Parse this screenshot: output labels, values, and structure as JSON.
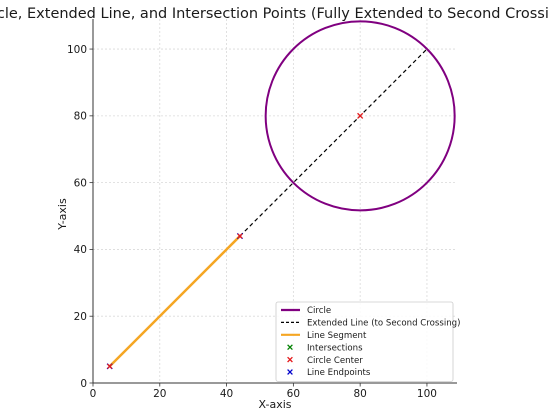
{
  "chart_data": {
    "type": "line",
    "title": "Circle, Extended Line, and Intersection Points (Fully Extended to Second Crossing)",
    "xlabel": "X-axis",
    "ylabel": "Y-axis",
    "xlim": [
      0,
      109
    ],
    "ylim": [
      0,
      109
    ],
    "xticks": [
      0,
      20,
      40,
      60,
      80,
      100
    ],
    "yticks": [
      0,
      20,
      40,
      60,
      80,
      100
    ],
    "grid": true,
    "legend_position": "bottom-right",
    "colors": {
      "circle": "#800080",
      "extended_line": "#000000",
      "segment": "#f5a623",
      "intersections": "#008000",
      "center": "#e41a1c",
      "endpoints": "#0000cc"
    },
    "circle": {
      "center": [
        80,
        80
      ],
      "radius": 28.3
    },
    "extended_line": {
      "x": [
        44,
        100
      ],
      "y": [
        44,
        100
      ]
    },
    "segment": {
      "x": [
        5,
        44
      ],
      "y": [
        5,
        44
      ]
    },
    "intersections": [],
    "center_point": [
      80,
      80
    ],
    "endpoints": [
      [
        5,
        5
      ],
      [
        44,
        44
      ]
    ],
    "legend": [
      {
        "key": "circle",
        "label": "Circle",
        "style": "line"
      },
      {
        "key": "extended_line",
        "label": "Extended Line (to Second Crossing)",
        "style": "dash"
      },
      {
        "key": "segment",
        "label": "Line Segment",
        "style": "line"
      },
      {
        "key": "intersections",
        "label": "Intersections",
        "style": "x"
      },
      {
        "key": "center",
        "label": "Circle Center",
        "style": "x"
      },
      {
        "key": "endpoints",
        "label": "Line Endpoints",
        "style": "x"
      }
    ]
  }
}
